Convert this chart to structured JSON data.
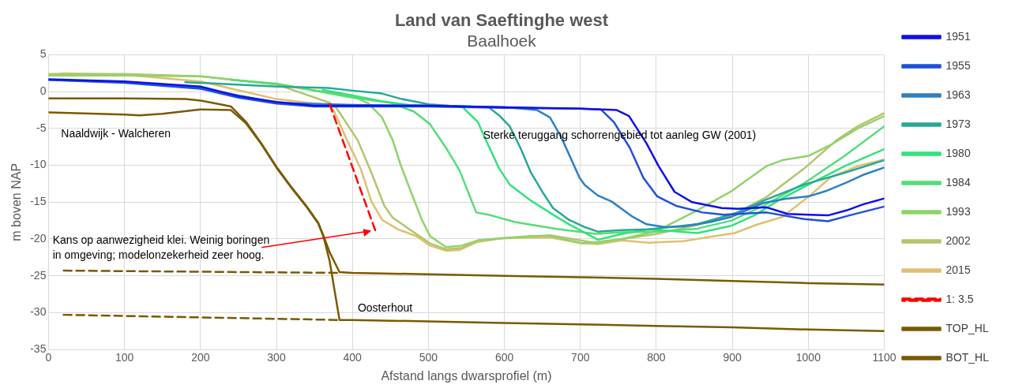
{
  "chart_data": {
    "type": "line",
    "title": "Land van Saeftinghe west",
    "subtitle": "Baalhoek",
    "xlabel": "Afstand langs dwarsprofiel (m)",
    "ylabel": "m boven NAP",
    "xlim": [
      0,
      1100
    ],
    "xticks": [
      0,
      100,
      200,
      300,
      400,
      500,
      600,
      700,
      800,
      900,
      1000,
      1100
    ],
    "ylim": [
      -35,
      5
    ],
    "yticks": [
      -35,
      -30,
      -25,
      -20,
      -15,
      -10,
      -5,
      0,
      5
    ],
    "grid": true,
    "legend": "right",
    "marker": "none",
    "series": [
      {
        "name": "1951",
        "color": "#1010e8",
        "x": [
          0,
          100,
          200,
          250,
          300,
          350,
          400,
          500,
          600,
          700,
          748,
          764,
          787,
          803,
          824,
          847,
          886,
          907,
          945,
          973,
          1026,
          1051,
          1072,
          1100
        ],
        "values": [
          1.7,
          1.4,
          0.7,
          -0.6,
          -1.4,
          -1.9,
          -1.9,
          -1.9,
          -2.1,
          -2.3,
          -2.5,
          -3.3,
          -7,
          -10.1,
          -13.6,
          -15,
          -15.8,
          -15.9,
          -15.7,
          -16.6,
          -16.8,
          -16.1,
          -15.3,
          -14.5
        ]
      },
      {
        "name": "1955",
        "color": "#2050d8",
        "x": [
          0,
          100,
          200,
          250,
          300,
          350,
          500,
          600,
          700,
          727,
          744,
          765,
          783,
          801,
          826,
          861,
          889,
          945,
          995,
          1026,
          1054,
          1100
        ],
        "values": [
          1.6,
          1.2,
          0.4,
          -0.8,
          -1.6,
          -2,
          -2,
          -2.2,
          -2.3,
          -2.4,
          -4.1,
          -7.6,
          -11.7,
          -14.2,
          -15.5,
          -16.4,
          -16.7,
          -16.4,
          -17.3,
          -17.6,
          -16.8,
          -15.6
        ]
      },
      {
        "name": "1963",
        "color": "#2e80c0",
        "x": [
          0,
          100,
          200,
          300,
          400,
          500,
          600,
          643,
          660,
          674,
          685,
          699,
          706,
          723,
          741,
          769,
          787,
          812,
          836,
          871,
          899,
          941,
          973,
          1001,
          1023,
          1051,
          1072,
          1100
        ],
        "values": [
          1.6,
          1.3,
          0.5,
          -1.5,
          -1.8,
          -1.9,
          -2.1,
          -2.5,
          -3.5,
          -6,
          -8.5,
          -11.7,
          -12.7,
          -14.1,
          -14.9,
          -17,
          -18,
          -18.4,
          -18.3,
          -17.7,
          -17,
          -15.1,
          -14.5,
          -14.2,
          -13.5,
          -12.3,
          -11.3,
          -10.3
        ]
      },
      {
        "name": "1973",
        "color": "#28a898",
        "x": [
          180,
          300,
          368,
          400,
          439,
          463,
          500,
          527,
          579,
          593,
          607,
          621,
          635,
          650,
          664,
          685,
          706,
          723,
          755,
          790,
          854,
          907,
          941,
          995,
          1048,
          1100
        ],
        "values": [
          1.3,
          0.7,
          0.5,
          0.15,
          -0.25,
          -0.95,
          -1.7,
          -1.9,
          -2.1,
          -3.2,
          -4.7,
          -7.6,
          -11,
          -13.6,
          -15.8,
          -17.4,
          -18.4,
          -19,
          -18.8,
          -18.7,
          -18,
          -16.4,
          -14.8,
          -12.6,
          -11,
          -9.3
        ]
      },
      {
        "name": "1980",
        "color": "#33e27a",
        "x": [
          361,
          400,
          439,
          474,
          544,
          565,
          579,
          593,
          607,
          635,
          664,
          685,
          723,
          755,
          790,
          854,
          899,
          931,
          960,
          995,
          1048,
          1100
        ],
        "values": [
          0.25,
          -0.5,
          -1.3,
          -1.8,
          -2,
          -4.1,
          -7.3,
          -10.4,
          -12.6,
          -14.8,
          -16.7,
          -18,
          -20.1,
          -19.3,
          -18.7,
          -19.2,
          -18.2,
          -16.7,
          -14.8,
          -12.9,
          -10.1,
          -7.8
        ]
      },
      {
        "name": "1984",
        "color": "#55dd77",
        "x": [
          240,
          300,
          400,
          450,
          481,
          502,
          523,
          541,
          563,
          579,
          614,
          667,
          720,
          755,
          801,
          854,
          899,
          941,
          995,
          1048,
          1100
        ],
        "values": [
          1.6,
          1.1,
          -0.8,
          -1.5,
          -2.7,
          -4.4,
          -7.6,
          -10.7,
          -16.4,
          -16.7,
          -17.7,
          -18.6,
          -19.3,
          -19.1,
          -19,
          -18.6,
          -17.5,
          -15.5,
          -12.4,
          -8.7,
          -4.7
        ]
      },
      {
        "name": "1993",
        "color": "#8fd46a",
        "x": [
          0,
          100,
          200,
          300,
          400,
          421,
          439,
          453,
          463,
          477,
          491,
          502,
          523,
          544,
          565,
          597,
          635,
          660,
          702,
          723,
          755,
          801,
          854,
          899,
          945,
          966,
          1001,
          1030,
          1065,
          1100
        ],
        "values": [
          2.2,
          2.2,
          2.1,
          1,
          -0.6,
          -1.6,
          -3.5,
          -6.6,
          -9.8,
          -13.6,
          -17.3,
          -19.6,
          -21.1,
          -20.9,
          -20.2,
          -19.9,
          -19.6,
          -19.6,
          -20.6,
          -20.4,
          -20,
          -18.9,
          -16.1,
          -13.5,
          -10.1,
          -9.3,
          -8.7,
          -7.2,
          -5,
          -3.3
        ]
      },
      {
        "name": "2002",
        "color": "#b4c46c",
        "x": [
          0,
          100,
          200,
          300,
          370,
          379,
          407,
          425,
          442,
          453,
          474,
          488,
          502,
          523,
          544,
          565,
          600,
          660,
          723,
          755,
          801,
          854,
          899,
          945,
          995,
          1037,
          1065,
          1100
        ],
        "values": [
          2.4,
          2.4,
          2.1,
          1,
          -1.5,
          -2.2,
          -6.6,
          -11,
          -15.5,
          -17.1,
          -18.6,
          -19.6,
          -20.6,
          -21.4,
          -21.2,
          -20.2,
          -19.9,
          -19.5,
          -20.6,
          -20,
          -19.3,
          -18.1,
          -16.8,
          -14.3,
          -10.4,
          -6.6,
          -4.7,
          -2.9
        ]
      },
      {
        "name": "2015",
        "color": "#e0c070",
        "x": [
          0,
          20,
          100,
          200,
          250,
          300,
          350,
          370,
          375,
          393,
          411,
          425,
          439,
          460,
          484,
          502,
          523,
          541,
          565,
          597,
          660,
          702,
          723,
          755,
          790,
          836,
          871,
          903,
          931,
          966,
          1001,
          1030,
          1065,
          1100
        ],
        "values": [
          2.2,
          2.5,
          2.3,
          1.4,
          0.2,
          -1,
          -1.6,
          -1.8,
          -2.5,
          -6.6,
          -10.5,
          -14.9,
          -17.4,
          -18.7,
          -19.6,
          -20.9,
          -21.6,
          -21.5,
          -20.4,
          -19.9,
          -19.8,
          -20.6,
          -20.7,
          -20.2,
          -20.5,
          -20.3,
          -19.7,
          -19.2,
          -18.1,
          -17,
          -14.2,
          -11.6,
          -10.1,
          -9.2
        ]
      },
      {
        "name": "1: 3.5",
        "color": "#ff0000",
        "line_style": "dashed",
        "x": [
          370,
          430
        ],
        "values": [
          -1.7,
          -18.8
        ]
      },
      {
        "name": "TOP_HL",
        "color": "#7a5a00",
        "x": [
          0,
          100,
          180,
          200,
          230,
          240,
          260,
          280,
          300,
          320,
          340,
          355,
          362,
          370,
          383,
          400,
          500,
          600,
          700,
          800,
          900,
          1000,
          1100
        ],
        "values": [
          -0.9,
          -0.9,
          -1,
          -1.2,
          -1.8,
          -2,
          -4.1,
          -7,
          -10.2,
          -13,
          -15.6,
          -17.8,
          -19.6,
          -21.8,
          -24.5,
          -24.6,
          -24.8,
          -25,
          -25.2,
          -25.4,
          -25.7,
          -26,
          -26.2
        ]
      },
      {
        "name": "BOT_HL",
        "color": "#7a5a00",
        "x": [
          0,
          100,
          120,
          150,
          200,
          240,
          260,
          280,
          300,
          320,
          340,
          355,
          362,
          370,
          383,
          400,
          500,
          600,
          700,
          800,
          900,
          1000,
          1100
        ],
        "values": [
          -2.8,
          -3.1,
          -3.2,
          -3,
          -2.4,
          -2.5,
          -4.3,
          -7.1,
          -10.3,
          -13.1,
          -15.7,
          -17.9,
          -19.7,
          -23,
          -31,
          -31,
          -31.2,
          -31.4,
          -31.6,
          -31.8,
          -32,
          -32.3,
          -32.5
        ]
      },
      {
        "color": "#7a5a00",
        "line_style": "dashed",
        "x": [
          20,
          380
        ],
        "values": [
          -24.3,
          -24.6
        ]
      },
      {
        "color": "#7a5a00",
        "line_style": "dashed",
        "x": [
          20,
          380
        ],
        "values": [
          -30.3,
          -31
        ]
      }
    ],
    "annotations": [
      "Naaldwijk - Walcheren",
      "Sterke teruggang schorrengebied tot aanleg GW (2001)",
      {
        "text": "Kans op aanwezigheid klei. Weinig boringen\nin omgeving; modelonzekerheid zeer hoog.",
        "x": 425,
        "y": -19
      },
      "Oosterhout"
    ]
  }
}
